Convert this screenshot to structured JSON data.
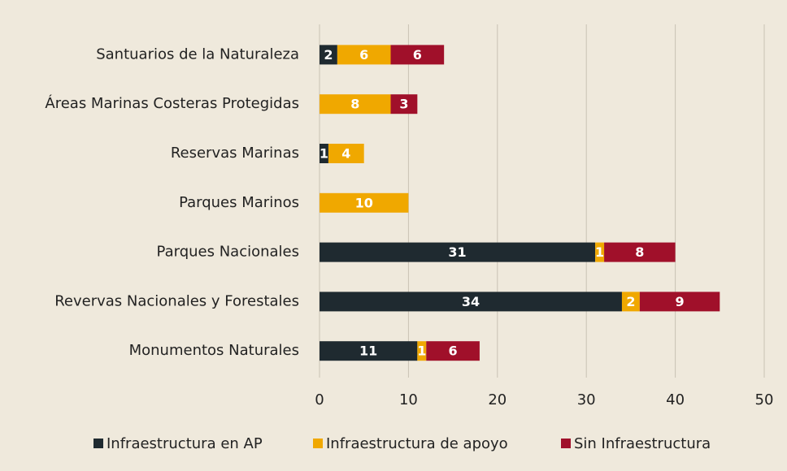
{
  "chart_data": {
    "type": "stacked-bar-horizontal",
    "categories": [
      "Santuarios de la Naturaleza",
      "Áreas Marinas Costeras Protegidas",
      "Reservas Marinas",
      "Parques Marinos",
      "Parques Nacionales",
      "Revervas Nacionales y Forestales",
      "Monumentos Naturales"
    ],
    "series": [
      {
        "name": "Infraestructura en AP",
        "color": "#1f2a30",
        "values": [
          2,
          null,
          1,
          null,
          31,
          34,
          11
        ]
      },
      {
        "name": "Infraestructura de apoyo",
        "color": "#f0a800",
        "values": [
          6,
          8,
          4,
          10,
          1,
          2,
          1
        ]
      },
      {
        "name": "Sin Infraestructura",
        "color": "#a0102a",
        "values": [
          6,
          3,
          null,
          null,
          8,
          9,
          6
        ]
      }
    ],
    "xlim": [
      0,
      50
    ],
    "xticks": [
      0,
      10,
      20,
      30,
      40,
      50
    ],
    "grid": true
  }
}
